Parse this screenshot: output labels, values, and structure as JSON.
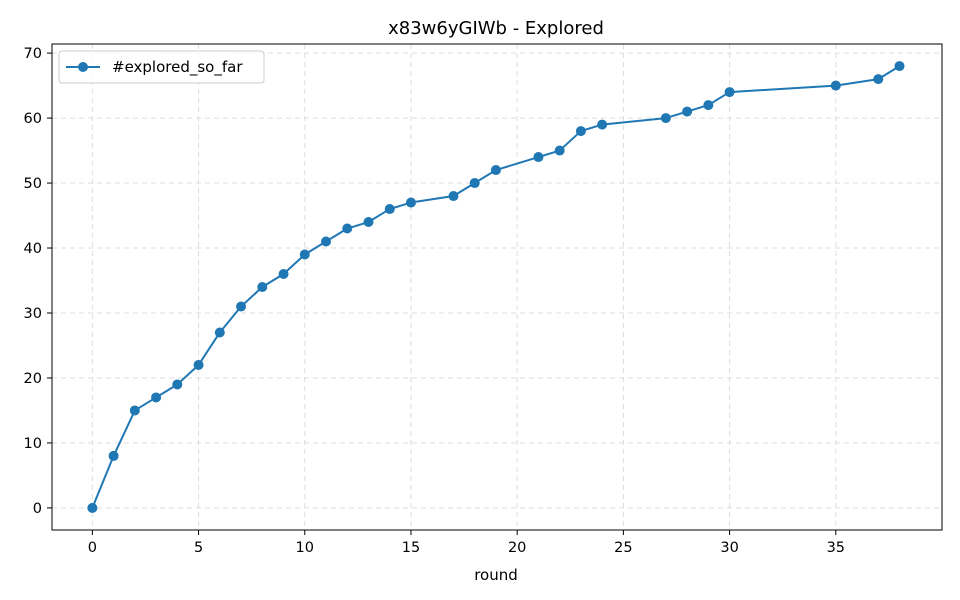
{
  "chart_data": {
    "type": "line",
    "title": "x83w6yGIWb - Explored",
    "xlabel": "round",
    "ylabel": "",
    "xlim": [
      -1.9,
      40.0
    ],
    "ylim": [
      -3.4,
      71.4
    ],
    "xticks": [
      0,
      5,
      10,
      15,
      20,
      25,
      30,
      35
    ],
    "yticks": [
      0,
      10,
      20,
      30,
      40,
      50,
      60,
      70
    ],
    "grid": true,
    "legend_position": "top-left",
    "series": [
      {
        "name": "#explored_so_far",
        "color": "#1f77b4",
        "marker": "circle",
        "x": [
          0,
          1,
          2,
          3,
          4,
          5,
          6,
          7,
          8,
          9,
          10,
          11,
          12,
          13,
          14,
          15,
          17,
          18,
          19,
          21,
          22,
          23,
          24,
          27,
          28,
          29,
          30,
          35,
          37,
          38
        ],
        "y": [
          0,
          8,
          15,
          17,
          19,
          22,
          27,
          31,
          34,
          36,
          39,
          41,
          43,
          44,
          46,
          47,
          48,
          50,
          52,
          54,
          55,
          58,
          59,
          60,
          61,
          62,
          64,
          65,
          66,
          68
        ]
      }
    ]
  }
}
